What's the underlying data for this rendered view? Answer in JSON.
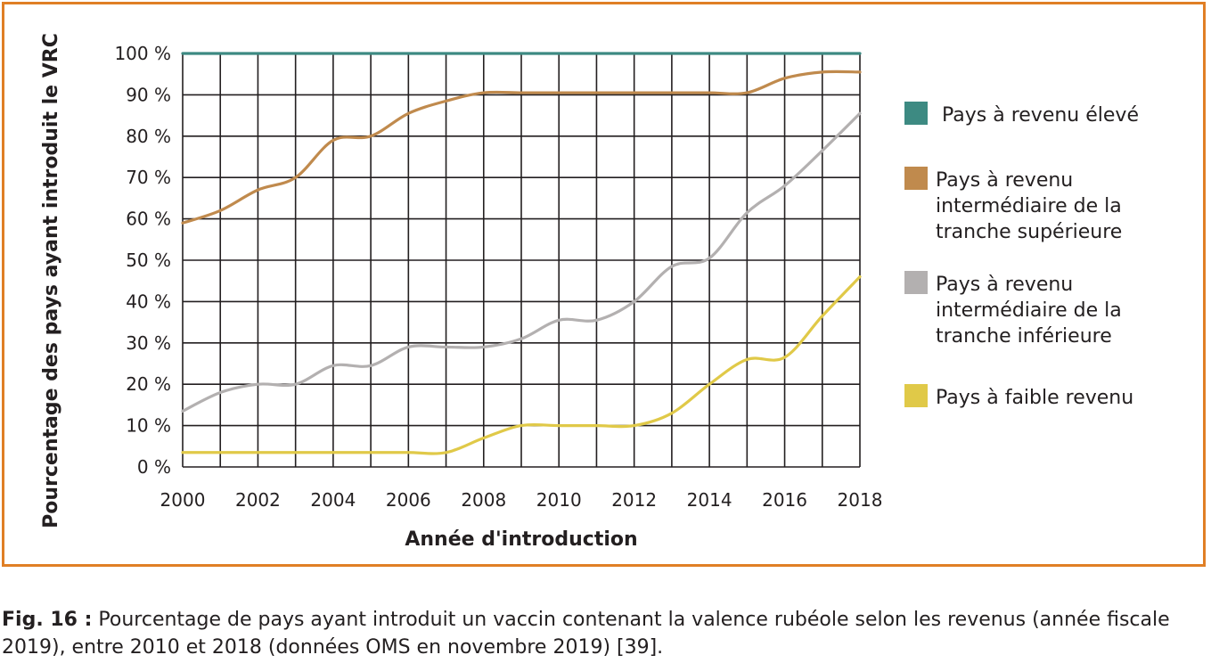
{
  "figure": {
    "caption_label": "Fig. 16 :",
    "caption_text": " Pourcentage de pays ayant introduit un vaccin contenant la valence rubéole selon les revenus (année fiscale 2019), entre 2010 et 2018 (données OMS en novembre 2019) [39]."
  },
  "colors": {
    "frame": "#e07f25",
    "grid": "#231f20",
    "text": "#231f20"
  },
  "chart_data": {
    "type": "line",
    "title": "",
    "xlabel": "Année d'introduction",
    "ylabel": "Pourcentage des pays ayant introduit le VRC",
    "xlim": [
      2000,
      2018
    ],
    "ylim": [
      0,
      100
    ],
    "x_ticks": [
      2000,
      2002,
      2004,
      2006,
      2008,
      2010,
      2012,
      2014,
      2016,
      2018
    ],
    "x_tick_labels": [
      "2000",
      "2002",
      "2004",
      "2006",
      "2008",
      "2010",
      "2012",
      "2014",
      "2016",
      "2018"
    ],
    "y_ticks": [
      0,
      10,
      20,
      30,
      40,
      50,
      60,
      70,
      80,
      90,
      100
    ],
    "y_tick_labels": [
      "0 %",
      "10 %",
      "20 %",
      "30 %",
      "40 %",
      "50 %",
      "60 %",
      "70 %",
      "80 %",
      "90 %",
      "100 %"
    ],
    "grid": true,
    "legend_position": "right",
    "x": [
      2000,
      2001,
      2002,
      2003,
      2004,
      2005,
      2006,
      2007,
      2008,
      2009,
      2010,
      2011,
      2012,
      2013,
      2014,
      2015,
      2016,
      2017,
      2018
    ],
    "series": [
      {
        "name": "Pays à revenu élevé",
        "color": "#3d8a82",
        "values": [
          100,
          100,
          100,
          100,
          100,
          100,
          100,
          100,
          100,
          100,
          100,
          100,
          100,
          100,
          100,
          100,
          100,
          100,
          100
        ]
      },
      {
        "name": "Pays à revenu intermédiaire de la tranche supérieure",
        "legend_lines": [
          "Pays à revenu",
          "intermédiaire de la",
          "tranche supérieure"
        ],
        "color": "#c08a4d",
        "values": [
          59,
          62,
          67,
          70,
          79,
          80,
          85.5,
          88.5,
          90.5,
          90.5,
          90.5,
          90.5,
          90.5,
          90.5,
          90.5,
          90.5,
          94,
          95.5,
          95.5
        ]
      },
      {
        "name": "Pays à revenu intermédiaire de la tranche inférieure",
        "legend_lines": [
          "Pays à revenu",
          "intermédiaire de la",
          "tranche inférieure"
        ],
        "color": "#b3b0b0",
        "values": [
          13.5,
          18,
          20,
          20,
          24.5,
          24.5,
          29,
          29,
          29,
          31,
          35.5,
          35.5,
          40,
          48.5,
          50.5,
          61.5,
          68,
          76.5,
          85.5
        ]
      },
      {
        "name": "Pays à faible revenu",
        "color": "#e0c948",
        "values": [
          3.5,
          3.5,
          3.5,
          3.5,
          3.5,
          3.5,
          3.5,
          3.5,
          7,
          10,
          10,
          10,
          10,
          13,
          20,
          26,
          26.5,
          36.5,
          46
        ]
      }
    ]
  }
}
